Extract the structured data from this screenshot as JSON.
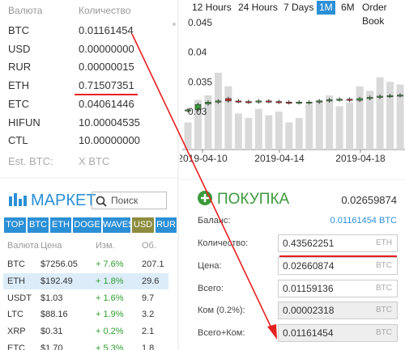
{
  "balances": {
    "header": [
      "Валюта",
      "Количество"
    ],
    "rows": [
      [
        "BTC",
        "0.01161454"
      ],
      [
        "USD",
        "0.00000000"
      ],
      [
        "RUR",
        "0.00000015"
      ],
      [
        "ETH",
        "0.71507351"
      ],
      [
        "ETC",
        "0.04061446"
      ],
      [
        "HIFUN",
        "10.00004535"
      ],
      [
        "CTL",
        "10.00000000"
      ]
    ],
    "estimate": [
      "Est. BTC:",
      "X BTC"
    ]
  },
  "market": {
    "title": "МАРКЕТ",
    "search_placeholder": "Поиск",
    "tabs": [
      "TOP",
      "BTC",
      "ETH",
      "DOGE",
      "WAVES",
      "USD",
      "RUR"
    ],
    "active_tab": 5,
    "header": [
      "Валюта",
      "Цена",
      "Изм.",
      "Об."
    ],
    "rows": [
      [
        "BTC",
        "$7256.05",
        "+ 7.6%",
        "207.1"
      ],
      [
        "ETH",
        "$192.49",
        "+ 1.8%",
        "29.6"
      ],
      [
        "USDT",
        "$1.03",
        "+ 1.6%",
        "9.7"
      ],
      [
        "LTC",
        "$88.16",
        "+ 1.9%",
        "3.2"
      ],
      [
        "XRP",
        "$0.31",
        "+ 0.2%",
        "2.1"
      ],
      [
        "ETC",
        "$1.70",
        "+ 5.3%",
        "1.8"
      ]
    ],
    "selected_row": 1
  },
  "chart_tabs": {
    "tabs": [
      "12 Hours",
      "24 Hours",
      "7 Days",
      "1M",
      "6M",
      "Order Book"
    ],
    "active": 3
  },
  "chart_data": {
    "type": "candlestick",
    "ylim": [
      0.0236,
      0.0461
    ],
    "yticks": [
      0.045,
      0.04,
      0.035,
      0.03
    ],
    "x_labels": [
      "2019-04-10",
      "2019-04-14",
      "2019-04-18"
    ],
    "open": [
      0.0302,
      0.0303,
      0.0313,
      0.0316,
      0.0322,
      0.0318,
      0.0317,
      0.0316,
      0.0318,
      0.0317,
      0.0316,
      0.0315,
      0.0315,
      0.0316,
      0.0318,
      0.032,
      0.0321,
      0.0319,
      0.0322,
      0.0324,
      0.0326,
      0.0327
    ],
    "close": [
      0.0303,
      0.0312,
      0.0316,
      0.0318,
      0.0318,
      0.0317,
      0.0316,
      0.0318,
      0.0317,
      0.0316,
      0.0315,
      0.0316,
      0.0316,
      0.0318,
      0.032,
      0.0321,
      0.0319,
      0.0322,
      0.0324,
      0.0326,
      0.0327,
      0.0328
    ],
    "high": [
      0.0306,
      0.0315,
      0.0319,
      0.0321,
      0.0325,
      0.0321,
      0.032,
      0.0321,
      0.0321,
      0.032,
      0.0319,
      0.0319,
      0.0319,
      0.0321,
      0.0323,
      0.0324,
      0.0324,
      0.0325,
      0.0327,
      0.0329,
      0.033,
      0.0331
    ],
    "low": [
      0.0299,
      0.03,
      0.031,
      0.0313,
      0.0315,
      0.0314,
      0.0313,
      0.0313,
      0.0314,
      0.0313,
      0.0312,
      0.0312,
      0.0312,
      0.0313,
      0.0315,
      0.0317,
      0.0316,
      0.0316,
      0.0319,
      0.0321,
      0.0323,
      0.0324
    ],
    "volume": [
      30,
      55,
      60,
      85,
      70,
      40,
      35,
      45,
      38,
      42,
      30,
      35,
      50,
      55,
      60,
      48,
      52,
      70,
      65,
      80,
      75,
      72
    ],
    "up_color": "#3c9a3c",
    "down_color": "#c62828",
    "volume_color": "#d9d9d9"
  },
  "buy": {
    "title": "ПОКУПКА",
    "price": "0.02659874",
    "balance": {
      "label": "Баланс:",
      "value": "0.01161454",
      "unit": "BTC"
    },
    "fields": [
      {
        "label": "Количество:",
        "value": "0.43562251",
        "unit": "ETH",
        "readonly": false
      },
      {
        "label": "Цена:",
        "value": "0.02660874",
        "unit": "BTC",
        "readonly": false
      },
      {
        "label": "Всего:",
        "value": "0.01159136",
        "unit": "BTC",
        "readonly": false
      },
      {
        "label": "Ком (0.2%):",
        "value": "0.00002318",
        "unit": "BTC",
        "readonly": true
      },
      {
        "label": "Всего+Ком:",
        "value": "0.01161454",
        "unit": "BTC",
        "readonly": true
      }
    ]
  }
}
